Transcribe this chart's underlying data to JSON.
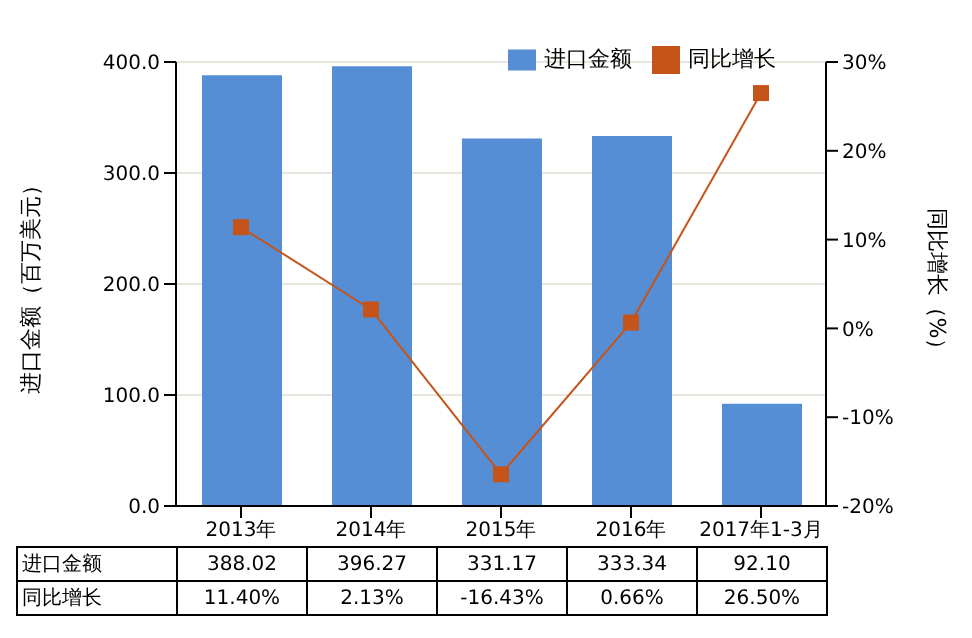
{
  "chart_data": {
    "type": "bar",
    "categories": [
      "2013年",
      "2014年",
      "2015年",
      "2016年",
      "2017年1-3月"
    ],
    "ylabel": "进口金额（百万美元）",
    "y2label": "同比增长（%）",
    "series": [
      {
        "name": "进口金额",
        "color": "#558ed5",
        "values": [
          388.02,
          396.27,
          331.17,
          333.34,
          92.1
        ],
        "value_labels": [
          "388.02",
          "396.27",
          "331.17",
          "333.34",
          "92.10"
        ]
      },
      {
        "name": "同比增长",
        "type": "line",
        "axis": "y2",
        "color": "#c5541b",
        "marker": "square",
        "values": [
          11.4,
          2.13,
          -16.43,
          0.66,
          26.5
        ],
        "value_labels": [
          "11.40%",
          "2.13%",
          "-16.43%",
          "0.66%",
          "26.50%"
        ]
      }
    ],
    "ylim": [
      0,
      400
    ],
    "yticks": [
      {
        "value": 0,
        "label": "0.0"
      },
      {
        "value": 100,
        "label": "100.0"
      },
      {
        "value": 200,
        "label": "200.0"
      },
      {
        "value": 300,
        "label": "300.0"
      },
      {
        "value": 400,
        "label": "400.0"
      }
    ],
    "y2lim": [
      -20,
      30
    ],
    "y2ticks": [
      {
        "value": -20,
        "label": "-20%"
      },
      {
        "value": -10,
        "label": "-10%"
      },
      {
        "value": 0,
        "label": "0%"
      },
      {
        "value": 10,
        "label": "10%"
      },
      {
        "value": 20,
        "label": "20%"
      },
      {
        "value": 30,
        "label": "30%"
      }
    ],
    "grid": "y",
    "legend": "top right"
  }
}
